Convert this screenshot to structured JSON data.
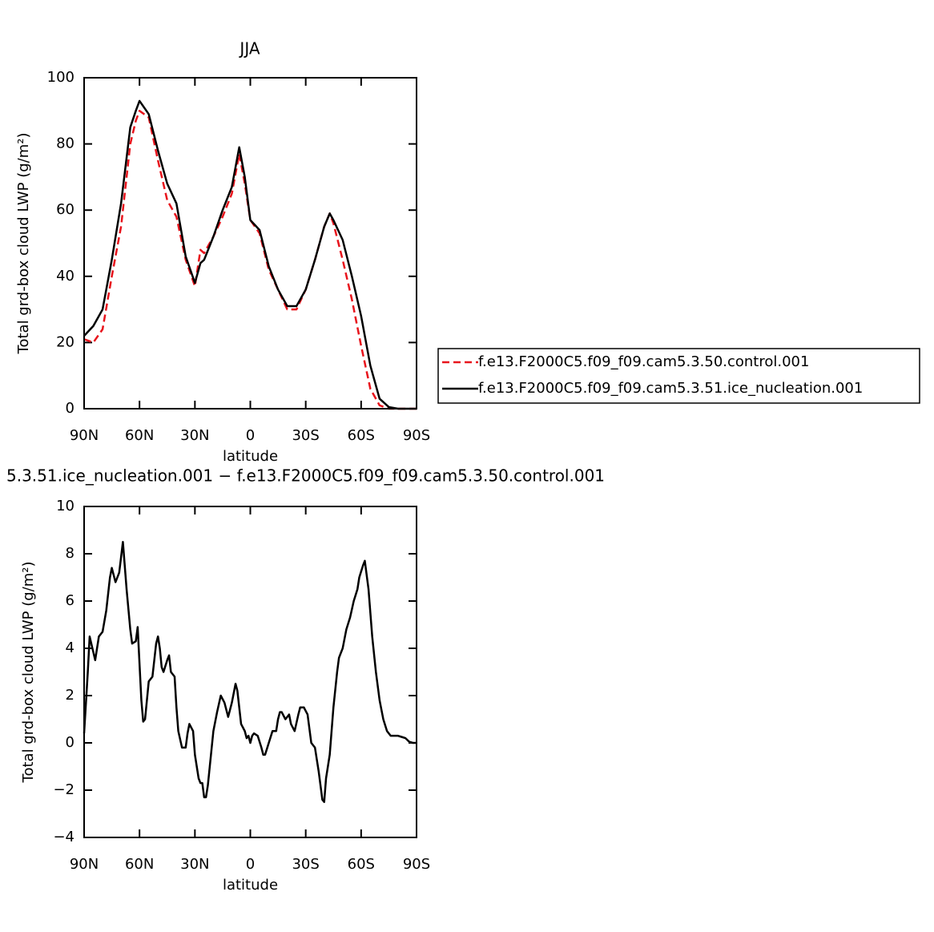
{
  "chart_data": [
    {
      "type": "line",
      "title": "JJA",
      "xlabel": "latitude",
      "ylabel": "Total grd-box cloud LWP (g/m²)",
      "x": [
        90,
        85,
        80,
        75,
        70,
        65,
        62,
        60,
        55,
        50,
        45,
        40,
        35,
        30,
        27,
        25,
        20,
        15,
        10,
        6,
        3,
        0,
        -5,
        -10,
        -15,
        -20,
        -25,
        -30,
        -35,
        -40,
        -43,
        -45,
        -50,
        -55,
        -60,
        -65,
        -70,
        -75,
        -80,
        -85,
        -90
      ],
      "series": [
        {
          "name": "f.e13.F2000C5.f09_f09.cam5.3.50.control.001",
          "color": "#e8141c",
          "linestyle": "dashed",
          "values": [
            21,
            20,
            24,
            40,
            55,
            80,
            87,
            90,
            88,
            75,
            63,
            58,
            45,
            37,
            48,
            47,
            52,
            58,
            65,
            77,
            68,
            57,
            53,
            42,
            36,
            30,
            30,
            36,
            45,
            55,
            59,
            56,
            45,
            33,
            19,
            6,
            1,
            0,
            0,
            0,
            0
          ]
        },
        {
          "name": "f.e13.F2000C5.f09_f09.cam5.3.51.ice_nucleation.001",
          "color": "#000000",
          "linestyle": "solid",
          "values": [
            22,
            25,
            30,
            45,
            62,
            85,
            90,
            93,
            89,
            78,
            68,
            62,
            46,
            38,
            44,
            45,
            52,
            60,
            67,
            79,
            70,
            57,
            54,
            43,
            36,
            31,
            31,
            36,
            45,
            55,
            59,
            57,
            51,
            40,
            28,
            13,
            3,
            0.5,
            0,
            0,
            0
          ]
        }
      ],
      "xlim": [
        90,
        -90
      ],
      "ylim": [
        0,
        100
      ],
      "xticks": [
        {
          "value": 90,
          "label": "90N"
        },
        {
          "value": 60,
          "label": "60N"
        },
        {
          "value": 30,
          "label": "30N"
        },
        0,
        {
          "value": -30,
          "label": "30S"
        },
        {
          "value": -60,
          "label": "60S"
        },
        {
          "value": -90,
          "label": "90S"
        }
      ],
      "yticks": [
        0,
        20,
        40,
        60,
        80,
        100
      ],
      "legend": "right"
    },
    {
      "type": "line",
      "title": "5.3.51.ice_nucleation.001 − f.e13.F2000C5.f09_f09.cam5.3.50.control.001",
      "xlabel": "latitude",
      "ylabel": "Total grd-box cloud LWP (g/m²)",
      "x": [
        90,
        88,
        87,
        84,
        82,
        80,
        78,
        76,
        75,
        73,
        71,
        69,
        67,
        65,
        64,
        62,
        61,
        59,
        58,
        57,
        56,
        55,
        53,
        51,
        50,
        49,
        48,
        47,
        45,
        44,
        43,
        41,
        40,
        39,
        37,
        35,
        34,
        33,
        31,
        30,
        28,
        27,
        26,
        25,
        24,
        23,
        20,
        18,
        16,
        14,
        12,
        10,
        8,
        7,
        5,
        3,
        2,
        1,
        0,
        -1,
        -2,
        -4,
        -6,
        -7,
        -8,
        -10,
        -12,
        -14,
        -15,
        -16,
        -17,
        -19,
        -21,
        -22,
        -24,
        -26,
        -27,
        -29,
        -31,
        -33,
        -35,
        -37,
        -39,
        -40,
        -41,
        -43,
        -45,
        -47,
        -48,
        -50,
        -52,
        -54,
        -56,
        -58,
        -59,
        -61,
        -62,
        -64,
        -66,
        -68,
        -70,
        -72,
        -74,
        -76,
        -78,
        -80,
        -82,
        -84,
        -86,
        -88,
        -90
      ],
      "series": [
        {
          "color": "#000000",
          "linestyle": "solid",
          "values": [
            0.4,
            3,
            4.5,
            3.5,
            4.5,
            4.7,
            5.6,
            7,
            7.4,
            6.8,
            7.2,
            8.5,
            6.5,
            4.8,
            4.2,
            4.3,
            4.9,
            1.8,
            0.9,
            1.0,
            1.8,
            2.6,
            2.8,
            4.2,
            4.5,
            4.0,
            3.2,
            3.0,
            3.5,
            3.7,
            3.0,
            2.8,
            1.5,
            0.5,
            -0.2,
            -0.2,
            0.4,
            0.8,
            0.5,
            -0.5,
            -1.5,
            -1.7,
            -1.7,
            -2.3,
            -2.3,
            -1.8,
            0.5,
            1.3,
            2.0,
            1.7,
            1.1,
            1.7,
            2.5,
            2.2,
            0.8,
            0.5,
            0.2,
            0.3,
            0,
            0.3,
            0.4,
            0.3,
            -0.2,
            -0.5,
            -0.5,
            0,
            0.5,
            0.5,
            1.0,
            1.3,
            1.3,
            1.0,
            1.2,
            0.8,
            0.5,
            1.2,
            1.5,
            1.5,
            1.2,
            0,
            -0.2,
            -1.2,
            -2.4,
            -2.5,
            -1.5,
            -0.5,
            1.5,
            3.0,
            3.6,
            4.0,
            4.8,
            5.3,
            6.0,
            6.5,
            7.0,
            7.5,
            7.7,
            6.5,
            4.5,
            3.0,
            1.8,
            1.0,
            0.5,
            0.3,
            0.3,
            0.3,
            0.25,
            0.2,
            0.05,
            0,
            0
          ]
        }
      ],
      "xlim": [
        90,
        -90
      ],
      "ylim": [
        -4,
        10
      ],
      "xticks": [
        {
          "value": 90,
          "label": "90N"
        },
        {
          "value": 60,
          "label": "60N"
        },
        {
          "value": 30,
          "label": "30N"
        },
        0,
        {
          "value": -30,
          "label": "30S"
        },
        {
          "value": -60,
          "label": "60S"
        },
        {
          "value": -90,
          "label": "90S"
        }
      ],
      "yticks": [
        {
          "value": -4,
          "label": "−4"
        },
        {
          "value": -2,
          "label": "−2"
        },
        0,
        2,
        4,
        6,
        8,
        10
      ]
    }
  ]
}
